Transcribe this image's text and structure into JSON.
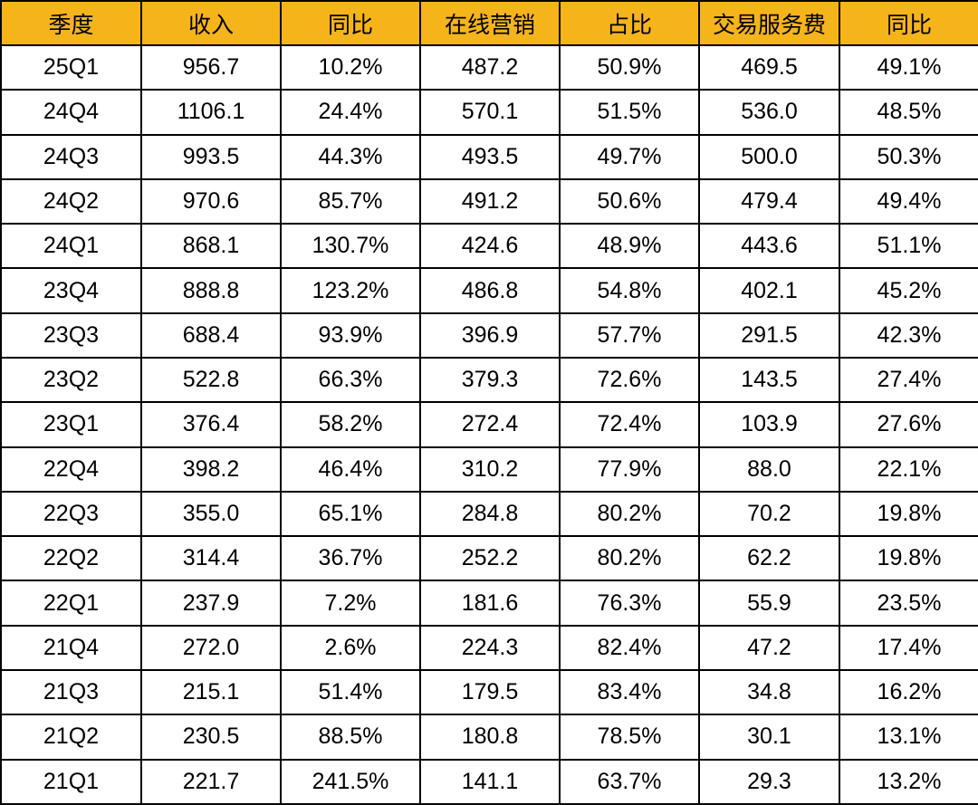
{
  "chart_data": {
    "type": "table",
    "columns": [
      "季度",
      "收入",
      "同比",
      "在线营销",
      "占比",
      "交易服务费",
      "同比"
    ],
    "rows": [
      [
        "25Q1",
        "956.7",
        "10.2%",
        "487.2",
        "50.9%",
        "469.5",
        "49.1%"
      ],
      [
        "24Q4",
        "1106.1",
        "24.4%",
        "570.1",
        "51.5%",
        "536.0",
        "48.5%"
      ],
      [
        "24Q3",
        "993.5",
        "44.3%",
        "493.5",
        "49.7%",
        "500.0",
        "50.3%"
      ],
      [
        "24Q2",
        "970.6",
        "85.7%",
        "491.2",
        "50.6%",
        "479.4",
        "49.4%"
      ],
      [
        "24Q1",
        "868.1",
        "130.7%",
        "424.6",
        "48.9%",
        "443.6",
        "51.1%"
      ],
      [
        "23Q4",
        "888.8",
        "123.2%",
        "486.8",
        "54.8%",
        "402.1",
        "45.2%"
      ],
      [
        "23Q3",
        "688.4",
        "93.9%",
        "396.9",
        "57.7%",
        "291.5",
        "42.3%"
      ],
      [
        "23Q2",
        "522.8",
        "66.3%",
        "379.3",
        "72.6%",
        "143.5",
        "27.4%"
      ],
      [
        "23Q1",
        "376.4",
        "58.2%",
        "272.4",
        "72.4%",
        "103.9",
        "27.6%"
      ],
      [
        "22Q4",
        "398.2",
        "46.4%",
        "310.2",
        "77.9%",
        "88.0",
        "22.1%"
      ],
      [
        "22Q3",
        "355.0",
        "65.1%",
        "284.8",
        "80.2%",
        "70.2",
        "19.8%"
      ],
      [
        "22Q2",
        "314.4",
        "36.7%",
        "252.2",
        "80.2%",
        "62.2",
        "19.8%"
      ],
      [
        "22Q1",
        "237.9",
        "7.2%",
        "181.6",
        "76.3%",
        "55.9",
        "23.5%"
      ],
      [
        "21Q4",
        "272.0",
        "2.6%",
        "224.3",
        "82.4%",
        "47.2",
        "17.4%"
      ],
      [
        "21Q3",
        "215.1",
        "51.4%",
        "179.5",
        "83.4%",
        "34.8",
        "16.2%"
      ],
      [
        "21Q2",
        "230.5",
        "88.5%",
        "180.8",
        "78.5%",
        "30.1",
        "13.1%"
      ],
      [
        "21Q1",
        "221.7",
        "241.5%",
        "141.1",
        "63.7%",
        "29.3",
        "13.2%"
      ]
    ]
  },
  "colors": {
    "header_background": "#f6b41b",
    "border": "#000000",
    "cell_background": "#ffffff"
  }
}
